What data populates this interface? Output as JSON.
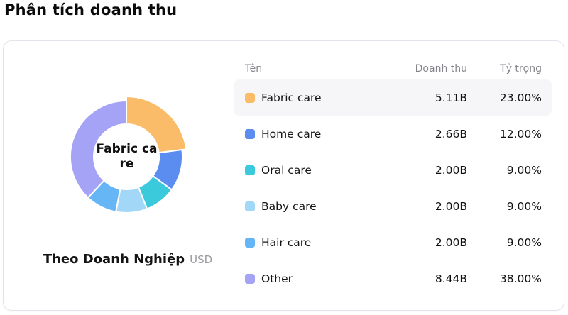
{
  "page": {
    "title": "Phân tích doanh thu"
  },
  "card": {
    "chart": {
      "center_label": "Fabric care",
      "caption_title": "Theo Doanh Nghiệp",
      "caption_unit": "USD"
    },
    "table": {
      "columns": [
        {
          "key": "name",
          "label": "Tên"
        },
        {
          "key": "revenue",
          "label": "Doanh thu"
        },
        {
          "key": "share",
          "label": "Tỷ trọng"
        }
      ],
      "rows": [
        {
          "name": "Fabric care",
          "revenue": "5.11B",
          "share": "23.00%",
          "color": "#fabc69",
          "highlighted": true
        },
        {
          "name": "Home care",
          "revenue": "2.66B",
          "share": "12.00%",
          "color": "#5b8df0",
          "highlighted": false
        },
        {
          "name": "Oral care",
          "revenue": "2.00B",
          "share": "9.00%",
          "color": "#3bc9dc",
          "highlighted": false
        },
        {
          "name": "Baby care",
          "revenue": "2.00B",
          "share": "9.00%",
          "color": "#a3d7f8",
          "highlighted": false
        },
        {
          "name": "Hair care",
          "revenue": "2.00B",
          "share": "9.00%",
          "color": "#66b6f5",
          "highlighted": false
        },
        {
          "name": "Other",
          "revenue": "8.44B",
          "share": "38.00%",
          "color": "#a4a3f6",
          "highlighted": false
        }
      ]
    }
  },
  "chart_data": {
    "type": "pie",
    "subtype": "donut",
    "title": "Phân tích doanh thu",
    "caption": "Theo Doanh Nghiệp",
    "unit": "USD (billions)",
    "categories": [
      "Fabric care",
      "Home care",
      "Oral care",
      "Baby care",
      "Hair care",
      "Other"
    ],
    "values": [
      5.11,
      2.66,
      2.0,
      2.0,
      2.0,
      8.44
    ],
    "percentages": [
      23,
      12,
      9,
      9,
      9,
      38
    ],
    "colors": [
      "#fabc69",
      "#5b8df0",
      "#3bc9dc",
      "#a3d7f8",
      "#66b6f5",
      "#a4a3f6"
    ],
    "selected_slice": "Fabric care",
    "center_label": "Fabric care",
    "start_angle_deg": 0,
    "direction": "clockwise",
    "inner_radius_ratio": 0.58,
    "legend_position": "table-right"
  }
}
